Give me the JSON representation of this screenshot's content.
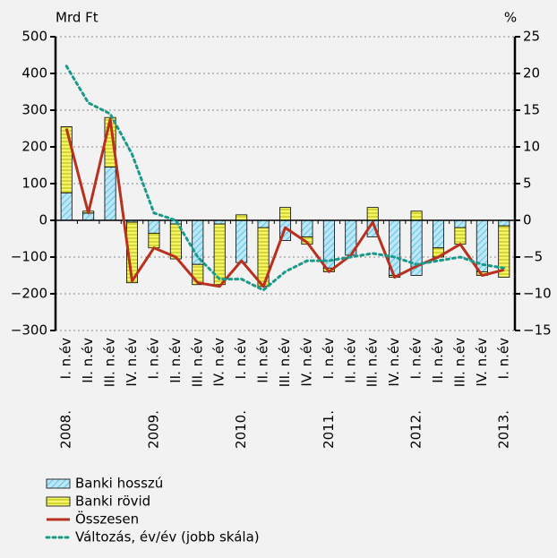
{
  "chart_data": {
    "type": "bar_line",
    "y_axis_label": "Mrd Ft",
    "y2_axis_label": "%",
    "categories": [
      "I. n.év",
      "II. n.év",
      "III. n.év",
      "IV. n.év",
      "I. n.év",
      "II. n.év",
      "III. n.év",
      "IV. n.év",
      "I. n.év",
      "II. n.év",
      "III. n.év",
      "IV. n.év",
      "I. n.év",
      "II. n.év",
      "III. n.év",
      "IV. n.év",
      "I. n.év",
      "II. n.év",
      "III. n.év",
      "IV. n.év",
      "I. n.év"
    ],
    "year_labels": [
      "2008.",
      null,
      null,
      null,
      "2009.",
      null,
      null,
      null,
      "2010.",
      null,
      null,
      null,
      "2011.",
      null,
      null,
      null,
      "2012.",
      null,
      null,
      null,
      "2013."
    ],
    "series": [
      {
        "name": "Banki hosszú",
        "kind": "bar",
        "color": "#5bc8ea",
        "fill": "#bfe6f4",
        "values": [
          75,
          20,
          145,
          -5,
          -35,
          -10,
          -120,
          -10,
          -115,
          -20,
          -55,
          -45,
          -130,
          -95,
          -45,
          -150,
          -150,
          -75,
          -20,
          -140,
          -15
        ]
      },
      {
        "name": "Banki rövid",
        "kind": "bar",
        "color": "#b5b500",
        "fill": "#f5f56a",
        "values": [
          180,
          5,
          135,
          -165,
          -40,
          -95,
          -55,
          -165,
          15,
          -160,
          35,
          -20,
          -10,
          0,
          35,
          -5,
          25,
          -25,
          -45,
          -10,
          -140
        ]
      },
      {
        "name": "Összesen",
        "kind": "line",
        "color": "#b8301e",
        "values": [
          250,
          20,
          275,
          -165,
          -75,
          -100,
          -170,
          -180,
          -110,
          -180,
          -20,
          -60,
          -140,
          -95,
          -5,
          -155,
          -125,
          -100,
          -65,
          -150,
          -135
        ]
      },
      {
        "name": "Változás, év/év (jobb skála)",
        "kind": "dotted",
        "axis": "y2",
        "color": "#1a9a8a",
        "values": [
          21,
          16,
          14.5,
          9,
          1,
          0,
          -5,
          -8,
          -8,
          -9.5,
          -7,
          -5.5,
          -5.5,
          -5,
          -4.5,
          -5,
          -6,
          -5.5,
          -5,
          -6,
          -6.5
        ]
      }
    ],
    "ylim": [
      -300,
      500
    ],
    "yticks": [
      {
        "value": -300,
        "label": "−300"
      },
      {
        "value": -200,
        "label": "−200"
      },
      {
        "value": -100,
        "label": "−100"
      },
      0,
      100,
      200,
      300,
      400,
      500
    ],
    "y2lim": [
      -15,
      25
    ],
    "y2ticks": [
      {
        "value": -15,
        "label": "−15"
      },
      {
        "value": -10,
        "label": "−10"
      },
      {
        "value": -5,
        "label": "−5"
      },
      0,
      5,
      10,
      15,
      20,
      25
    ],
    "grid": true
  }
}
